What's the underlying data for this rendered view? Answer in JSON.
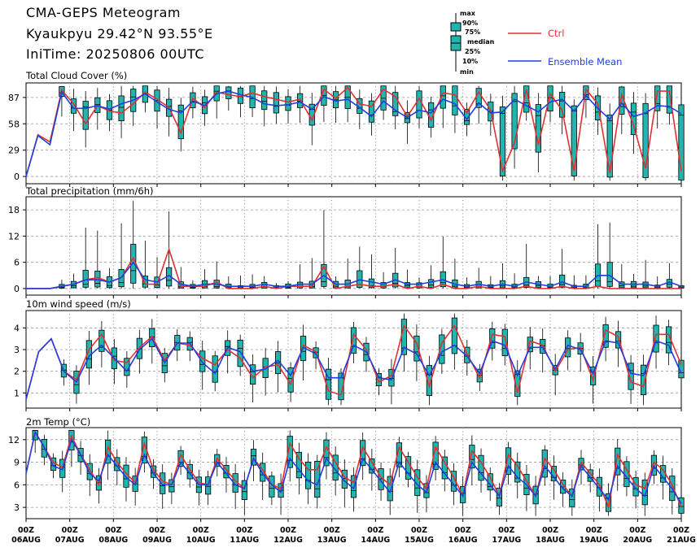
{
  "header": {
    "title": "CMA-GEPS Meteogram",
    "location": "Kyaukpyu  29.42°N  93.55°E",
    "init_time": "IniTime: 20250806 00UTC"
  },
  "legend": {
    "box_labels": [
      "max",
      "90%",
      "75%",
      "median",
      "25%",
      "10%",
      "min"
    ],
    "ctrl_label": "Ctrl",
    "mean_label": "Ensemble Mean",
    "colors": {
      "ctrl": "#e03030",
      "mean": "#1f3fe0",
      "box": "#22b5b0"
    }
  },
  "x_axis": {
    "tick_labels_top": [
      "00Z",
      "00Z",
      "00Z",
      "00Z",
      "00Z",
      "00Z",
      "00Z",
      "00Z",
      "00Z",
      "00Z",
      "00Z",
      "00Z",
      "00Z",
      "00Z",
      "00Z",
      "00Z"
    ],
    "tick_labels_bottom": [
      "06AUG",
      "07AUG",
      "08AUG",
      "09AUG",
      "10AUG",
      "11AUG",
      "12AUG",
      "13AUG",
      "14AUG",
      "15AUG",
      "16AUG",
      "17AUG",
      "18AUG",
      "19AUG",
      "20AUG",
      "21AUG"
    ]
  },
  "chart_data": [
    {
      "type": "line",
      "title": "Total Cloud Cover (%)",
      "ylim": [
        -8,
        103
      ],
      "yticks": [
        0,
        29,
        58,
        87
      ],
      "grid": true,
      "series": [
        {
          "name": "Ctrl",
          "values": [
            0,
            46,
            38,
            95,
            80,
            58,
            78,
            72,
            70,
            80,
            93,
            85,
            76,
            48,
            86,
            76,
            93,
            90,
            88,
            92,
            88,
            85,
            82,
            85,
            62,
            96,
            86,
            98,
            80,
            77,
            96,
            88,
            66,
            86,
            62,
            92,
            90,
            70,
            93,
            73,
            6,
            37,
            96,
            35,
            91,
            73,
            6,
            96,
            80,
            4,
            90,
            56,
            9,
            94,
            94,
            6
          ]
        },
        {
          "name": "Ensemble Mean",
          "values": [
            0,
            45,
            35,
            93,
            75,
            75,
            78,
            74,
            80,
            84,
            91,
            82,
            74,
            70,
            83,
            78,
            91,
            94,
            90,
            87,
            80,
            78,
            79,
            82,
            74,
            88,
            83,
            85,
            76,
            66,
            83,
            73,
            65,
            73,
            70,
            85,
            80,
            63,
            81,
            70,
            71,
            85,
            78,
            71,
            82,
            85,
            72,
            89,
            75,
            63,
            81,
            66,
            70,
            78,
            77,
            69
          ]
        }
      ]
    },
    {
      "type": "line",
      "title": "Total precipitation (mm/6h)",
      "ylim": [
        -1.5,
        21
      ],
      "yticks": [
        0,
        6,
        12,
        18
      ],
      "grid": true,
      "series": [
        {
          "name": "Ctrl",
          "values": [
            0,
            0,
            0,
            0.5,
            1,
            2,
            2.5,
            1.5,
            2.5,
            7,
            1,
            1,
            9,
            0.5,
            0.5,
            0.5,
            1.5,
            0,
            0,
            0,
            0.5,
            0,
            0.5,
            0.5,
            0.5,
            5,
            0,
            0.5,
            1,
            0.5,
            0.5,
            1,
            0,
            0.5,
            0,
            1,
            0,
            0,
            0.5,
            0,
            0,
            0,
            0.5,
            0,
            0,
            0.5,
            0,
            0,
            0.5,
            0,
            0,
            0,
            0,
            0,
            0,
            0
          ]
        },
        {
          "name": "Ensemble Mean",
          "values": [
            0,
            0,
            0,
            0.5,
            1,
            2,
            2,
            1.5,
            2.5,
            6,
            2,
            1.5,
            3,
            1,
            0.5,
            1,
            1,
            0.5,
            0.5,
            0.5,
            1,
            0.5,
            0.5,
            1,
            1,
            3,
            1,
            1,
            2,
            1.5,
            1,
            2,
            1,
            1,
            1.5,
            2,
            1,
            0.5,
            1,
            0.5,
            1,
            0.5,
            1.5,
            1,
            0.5,
            1.5,
            0.5,
            0.5,
            3,
            3,
            1,
            1,
            1,
            0.5,
            1.5,
            0.5
          ]
        }
      ]
    },
    {
      "type": "line",
      "title": "10m wind speed (m/s)",
      "ylim": [
        0.3,
        4.8
      ],
      "yticks": [
        1,
        2,
        3,
        4
      ],
      "grid": true,
      "series": [
        {
          "name": "Ctrl",
          "values": [
            0.7,
            2.9,
            3.5,
            2,
            1.6,
            3,
            3.7,
            2.5,
            2.4,
            3.1,
            3.6,
            2.5,
            3.3,
            3.2,
            2.6,
            2.3,
            3,
            2.6,
            1.7,
            2.2,
            2.3,
            1.4,
            3.2,
            2.9,
            1.1,
            0.9,
            3.7,
            3,
            1.5,
            1.8,
            4.1,
            3.3,
            1.3,
            3.3,
            4.1,
            2.8,
            1.7,
            3.7,
            3.6,
            1,
            3.4,
            3.2,
            2,
            3,
            3.1,
            1.6,
            3.9,
            3.6,
            1.5,
            1.3,
            3.7,
            3.7,
            2.3
          ]
        },
        {
          "name": "Ensemble Mean",
          "values": [
            0.7,
            2.9,
            3.5,
            2,
            1.5,
            2.7,
            3.2,
            2.6,
            2.0,
            3.0,
            3.5,
            2.4,
            3.3,
            3.3,
            2.4,
            1.9,
            3.1,
            2.9,
            2.0,
            2.1,
            2.5,
            1.8,
            3.1,
            2.8,
            1.7,
            1.7,
            3.2,
            2.9,
            1.7,
            1.6,
            3.1,
            2.8,
            1.8,
            2.9,
            3.2,
            2.7,
            1.9,
            3.4,
            3.2,
            1.8,
            3.1,
            3.1,
            2.1,
            3.2,
            3.0,
            1.9,
            3.4,
            3.3,
            1.9,
            1.8,
            3.4,
            3.2,
            1.9
          ]
        }
      ]
    },
    {
      "type": "line",
      "title": "2m Temp (°C)",
      "ylim": [
        1.5,
        13.6
      ],
      "yticks": [
        3,
        6,
        9,
        12
      ],
      "grid": true,
      "series": [
        {
          "name": "Ctrl",
          "values": [
            7.5,
            13,
            11,
            9,
            8.3,
            12.5,
            10,
            8,
            6,
            11,
            9,
            7.5,
            6.3,
            11.5,
            8,
            6.5,
            6,
            10,
            8,
            6.3,
            6,
            9.5,
            8,
            6.5,
            5.5,
            9.5,
            8,
            6,
            5.5,
            11.5,
            9.5,
            8,
            8,
            11,
            9,
            7,
            6.3,
            11,
            9,
            7,
            6,
            11,
            9,
            7,
            5.5,
            11,
            9,
            7,
            4.5,
            10.5,
            9,
            7,
            4.5,
            10,
            8.5,
            6.5,
            4.5,
            9.5,
            8,
            6,
            4.5,
            9,
            7.5,
            6,
            3,
            10,
            8,
            6,
            5.5,
            9,
            8,
            6,
            3
          ]
        },
        {
          "name": "Ensemble Mean",
          "values": [
            7.5,
            13,
            11,
            8.5,
            8,
            12,
            10,
            7.5,
            6.5,
            10,
            8.5,
            7,
            6,
            10,
            7.5,
            6,
            6,
            9,
            7.5,
            6,
            6,
            9,
            7.5,
            6,
            5.5,
            9.5,
            7.5,
            6,
            5,
            9.5,
            8,
            6.5,
            6,
            9.5,
            8,
            6.5,
            5.5,
            9.5,
            8,
            6.5,
            5,
            9,
            7.5,
            6,
            5,
            9,
            7.5,
            6,
            4.5,
            9,
            7.5,
            6,
            4.5,
            8.5,
            7,
            6,
            4.5,
            8.5,
            7,
            5.5,
            4.5,
            8.5,
            7,
            5.5,
            4,
            8.5,
            7,
            5.5,
            4.5,
            8.5,
            7,
            5.5,
            3.5
          ]
        }
      ]
    }
  ]
}
